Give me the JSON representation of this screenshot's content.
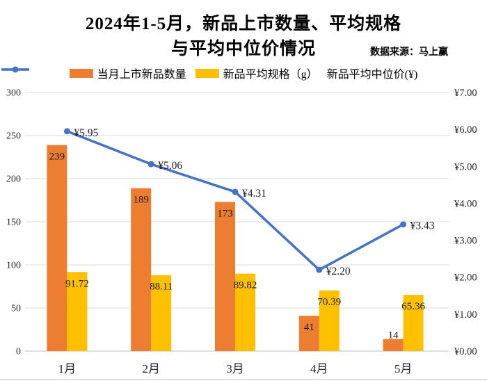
{
  "title": {
    "line1": "2024年1-5月，新品上市数量、平均规格",
    "line2": "与平均中位价情况"
  },
  "source": "数据来源：马上赢",
  "legend": [
    {
      "label": "当月上市新品数量",
      "color": "#ED7D31",
      "type": "bar"
    },
    {
      "label": "新品平均规格（g）",
      "color": "#FFC000",
      "type": "bar"
    },
    {
      "label": "新品平均中位价(¥)",
      "color": "#4472C4",
      "type": "line"
    }
  ],
  "chart_data": {
    "type": "bar",
    "subtype": "bar+line combo, dual axis",
    "categories": [
      "1月",
      "2月",
      "3月",
      "4月",
      "5月"
    ],
    "series": [
      {
        "name": "当月上市新品数量",
        "type": "bar",
        "axis": "left",
        "color": "#ED7D31",
        "values": [
          239,
          189,
          173,
          41,
          14
        ],
        "labels": [
          "239",
          "189",
          "173",
          "41",
          "14"
        ]
      },
      {
        "name": "新品平均规格（g）",
        "type": "bar",
        "axis": "left",
        "color": "#FFC000",
        "values": [
          91.72,
          88.11,
          89.82,
          70.39,
          65.36
        ],
        "labels": [
          "91.72",
          "88.11",
          "89.82",
          "70.39",
          "65.36"
        ]
      },
      {
        "name": "新品平均中位价(¥)",
        "type": "line",
        "axis": "right",
        "color": "#4472C4",
        "values": [
          5.95,
          5.06,
          4.31,
          2.2,
          3.43
        ],
        "labels": [
          "¥5.95",
          "¥5.06",
          "¥4.31",
          "¥2.20",
          "¥3.43"
        ]
      }
    ],
    "left_axis": {
      "min": 0,
      "max": 300,
      "step": 50,
      "ticks": [
        "0",
        "50",
        "100",
        "150",
        "200",
        "250",
        "300"
      ]
    },
    "right_axis": {
      "min": 0,
      "max": 7,
      "step": 1,
      "ticks": [
        "¥0.00",
        "¥1.00",
        "¥2.00",
        "¥3.00",
        "¥4.00",
        "¥5.00",
        "¥6.00",
        "¥7.00"
      ]
    },
    "grid": true,
    "legend_position": "top",
    "colors": {
      "gridline": "#d9d9d9",
      "axis_line": "#bfbfbf",
      "text": "#262626"
    }
  }
}
